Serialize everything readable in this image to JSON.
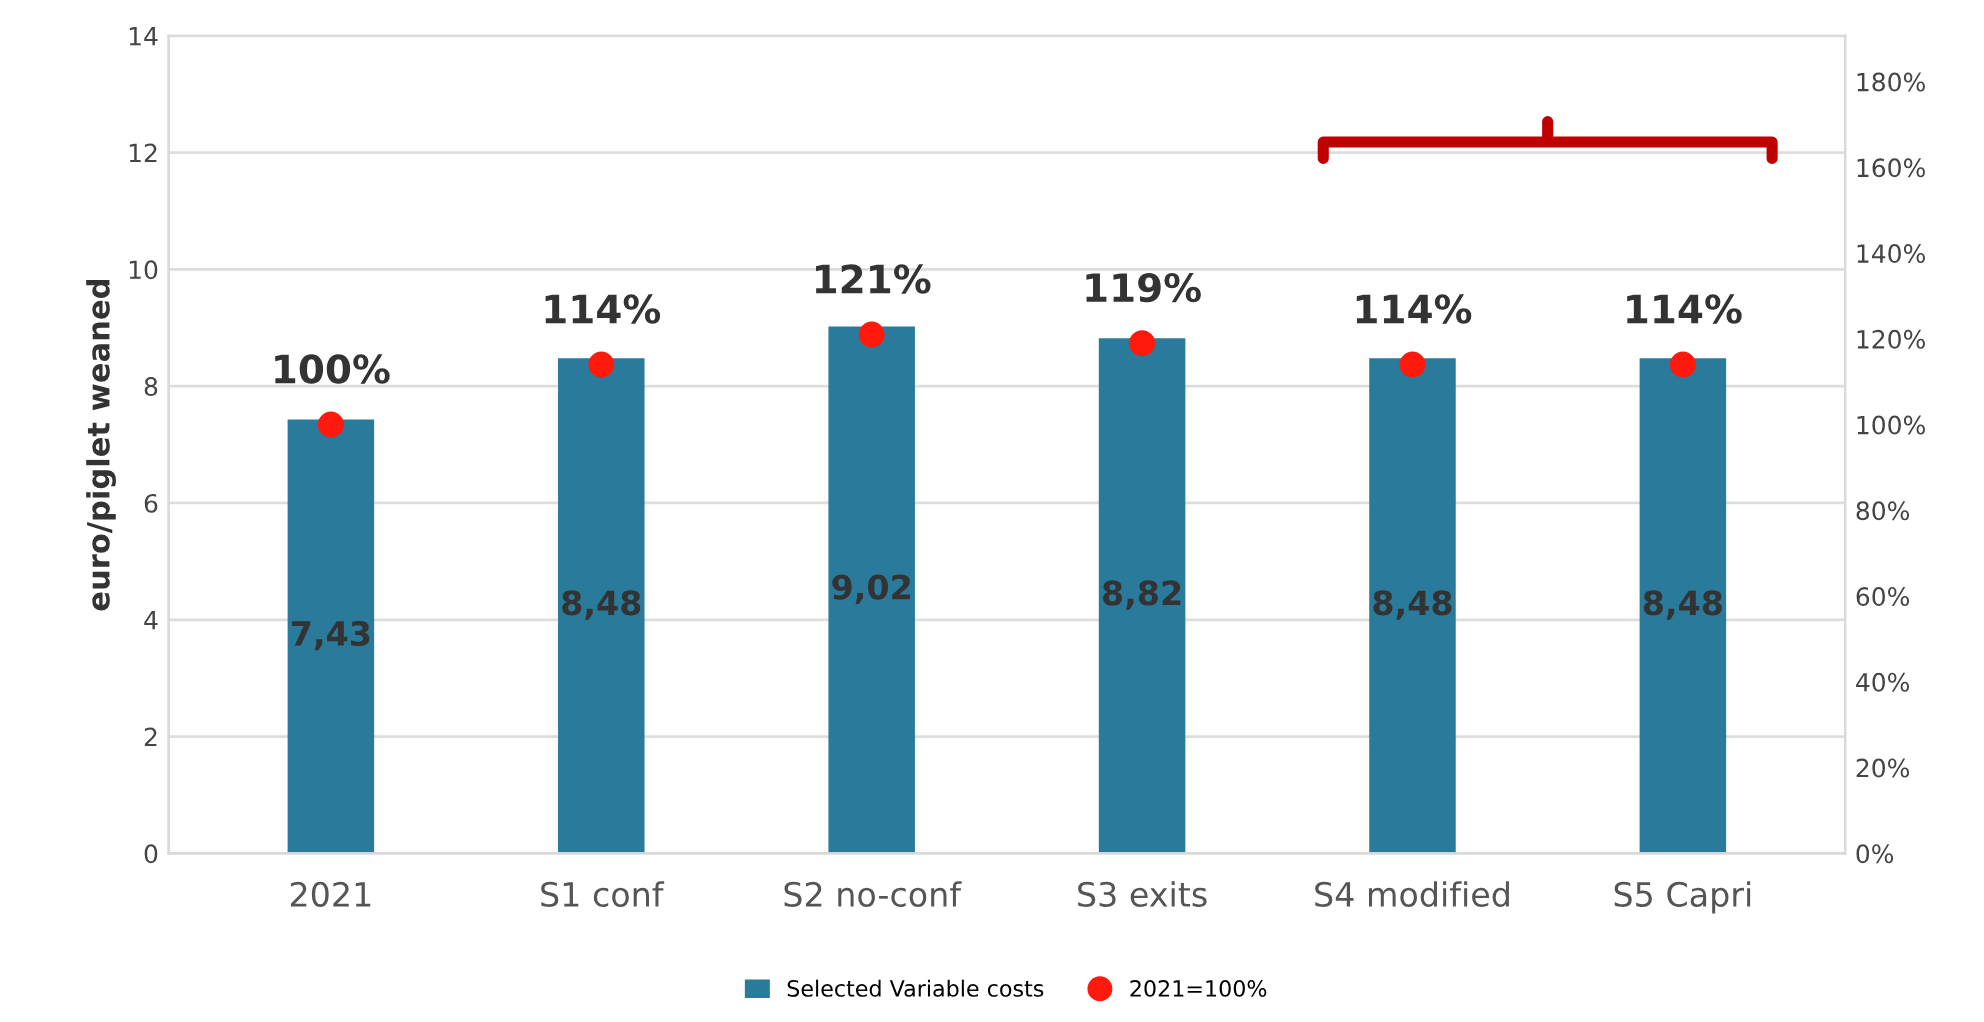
{
  "chart_data": {
    "type": "bar",
    "ylabel": "euro/piglet weaned",
    "categories": [
      "2021",
      "S1 conf",
      "S2 no-conf",
      "S3 exits",
      "S4 modified",
      "S5 Capri"
    ],
    "series": [
      {
        "name": "Selected Variable costs",
        "color": "#2a7b9b",
        "values": [
          7.43,
          8.48,
          9.02,
          8.82,
          8.48,
          8.48
        ],
        "value_labels": [
          "7,43",
          "8,48",
          "9,02",
          "8,82",
          "8,48",
          "8,48"
        ]
      },
      {
        "name": "2021=100%",
        "type": "scatter",
        "axis": "y2",
        "color": "#ff1a0d",
        "values": [
          100,
          114,
          121,
          119,
          114,
          114
        ],
        "value_labels": [
          "100%",
          "114%",
          "121%",
          "119%",
          "114%",
          "114%"
        ]
      }
    ],
    "ylim": [
      0,
      14
    ],
    "yticks": [
      0,
      2,
      4,
      6,
      8,
      10,
      12,
      14
    ],
    "y2lim": [
      0,
      190.7
    ],
    "y2ticks": [
      {
        "value": 0,
        "label": "0%"
      },
      {
        "value": 20,
        "label": "20%"
      },
      {
        "value": 40,
        "label": "40%"
      },
      {
        "value": 60,
        "label": "60%"
      },
      {
        "value": 80,
        "label": "80%"
      },
      {
        "value": 100,
        "label": "100%"
      },
      {
        "value": 120,
        "label": "120%"
      },
      {
        "value": 140,
        "label": "140%"
      },
      {
        "value": 160,
        "label": "160%"
      },
      {
        "value": 180,
        "label": "180%"
      }
    ],
    "grid": "y",
    "legend": "bottom",
    "marker": "circle"
  }
}
